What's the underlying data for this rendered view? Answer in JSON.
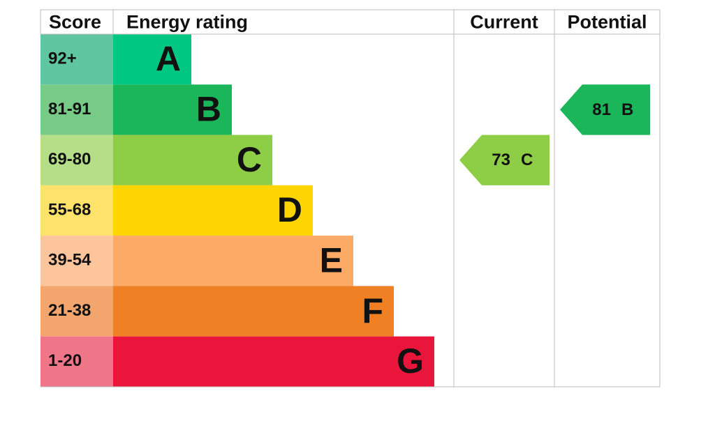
{
  "headers": [
    "Score",
    "Energy rating",
    "Current",
    "Potential"
  ],
  "bands": [
    {
      "score": "92+",
      "letter": "A",
      "color": "#00c781",
      "score_color": "#5fc6a1"
    },
    {
      "score": "81-91",
      "letter": "B",
      "color": "#1bb55a",
      "score_color": "#78cb87"
    },
    {
      "score": "69-80",
      "letter": "C",
      "color": "#8dce46",
      "score_color": "#b4de88"
    },
    {
      "score": "55-68",
      "letter": "D",
      "color": "#ffd500",
      "score_color": "#ffe26a"
    },
    {
      "score": "39-54",
      "letter": "E",
      "color": "#fcaa65",
      "score_color": "#fdc59c"
    },
    {
      "score": "21-38",
      "letter": "F",
      "color": "#ef8023",
      "score_color": "#f3a56e"
    },
    {
      "score": "1-20",
      "letter": "G",
      "color": "#e9153b",
      "score_color": "#ef7589"
    }
  ],
  "current": {
    "value": 73,
    "letter": "C"
  },
  "potential": {
    "value": 81,
    "letter": "B"
  }
}
